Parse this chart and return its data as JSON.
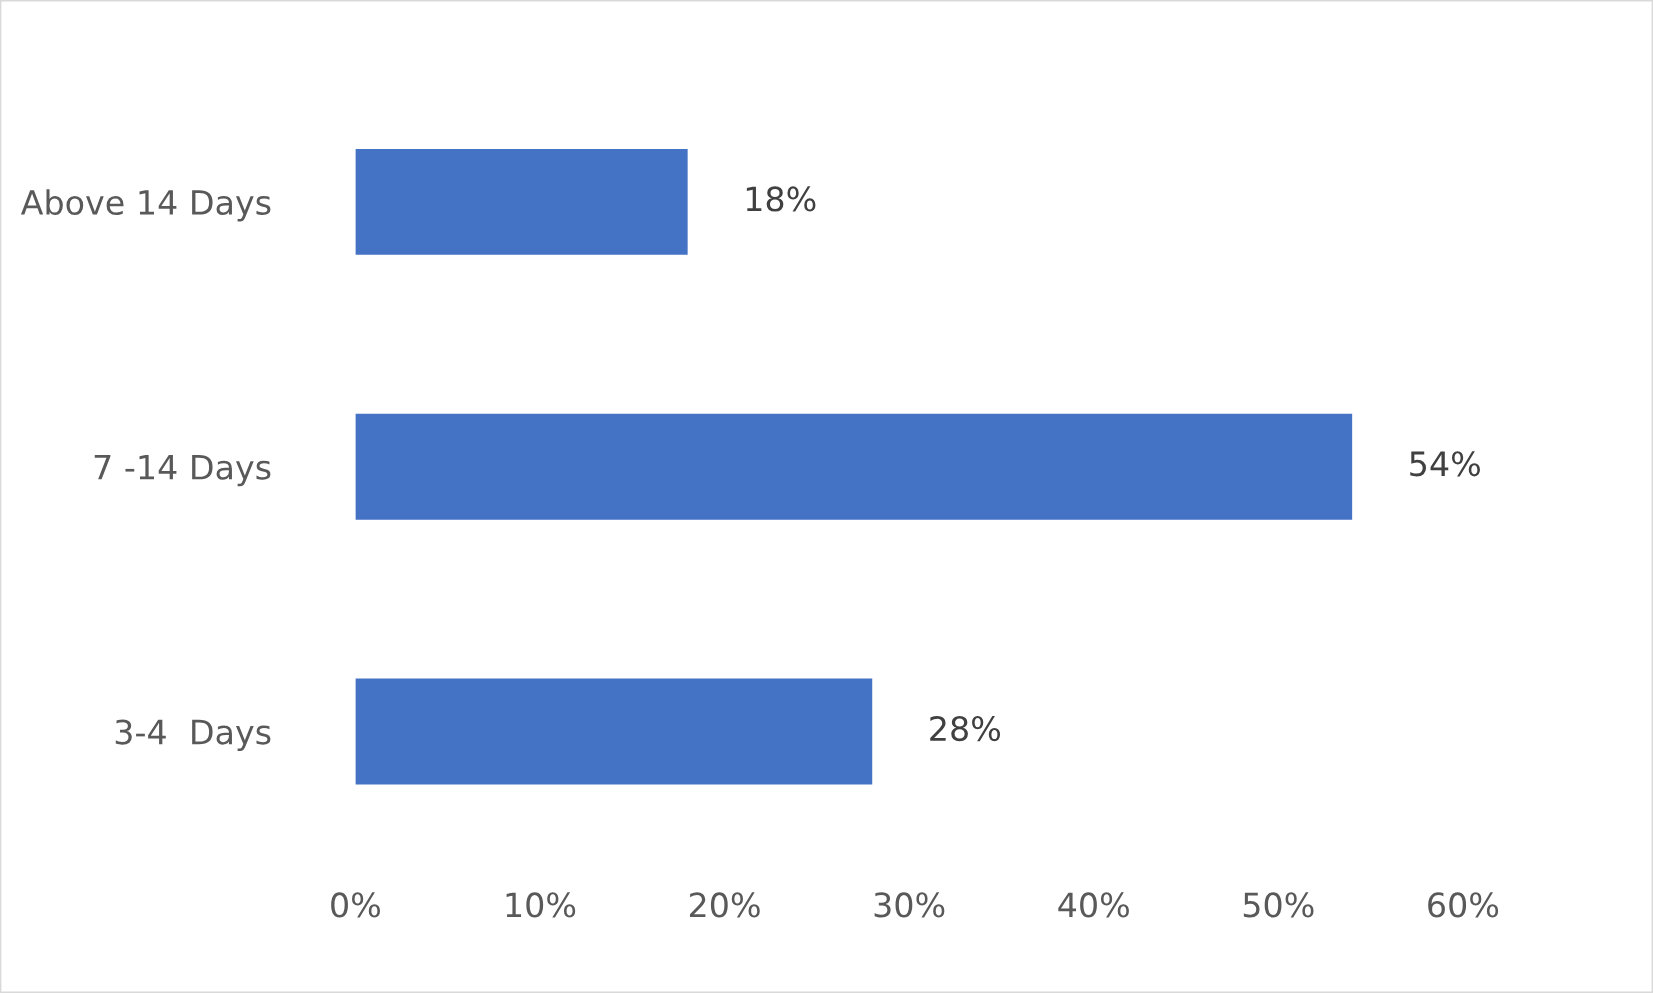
{
  "chart_data": {
    "type": "bar",
    "orientation": "horizontal",
    "categories": [
      "Above 14 Days",
      "7 -14 Days",
      "3-4  Days"
    ],
    "values": [
      18,
      54,
      28
    ],
    "color": "#4472c4",
    "value_labels": [
      "18%",
      "54%",
      "28%"
    ],
    "xlim": [
      0,
      60
    ],
    "xticks": [
      {
        "value": 0,
        "label": "0%"
      },
      {
        "value": 10,
        "label": "10%"
      },
      {
        "value": 20,
        "label": "20%"
      },
      {
        "value": 30,
        "label": "30%"
      },
      {
        "value": 40,
        "label": "40%"
      },
      {
        "value": 50,
        "label": "50%"
      },
      {
        "value": 60,
        "label": "60%"
      }
    ],
    "grid": false,
    "legend": false
  }
}
